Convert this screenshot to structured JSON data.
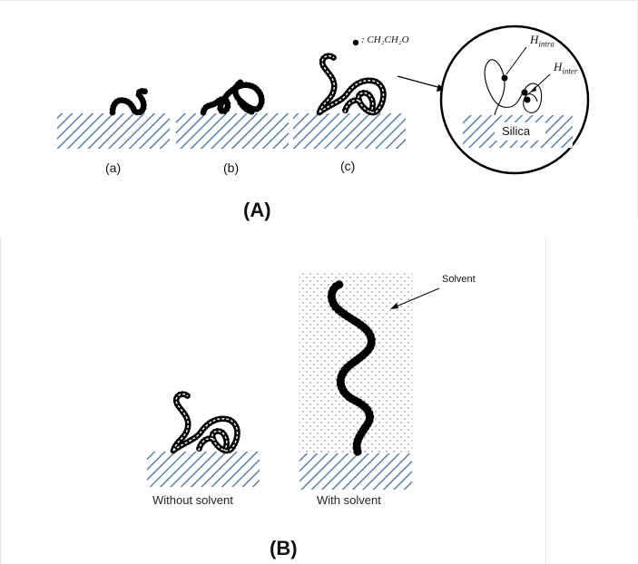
{
  "panels": {
    "A": "(A)",
    "B": "(B)"
  },
  "sub_labels": {
    "a": "(a)",
    "b": "(b)",
    "c": "(c)"
  },
  "legend": {
    "text": ": CH₂CH₂O"
  },
  "inset": {
    "h_intra": "H",
    "h_intra_sub": "intra",
    "h_inter": "H",
    "h_inter_sub": "inter",
    "silica": "Silica"
  },
  "solvent": {
    "label": "Solvent"
  },
  "captions": {
    "without": "Without solvent",
    "with": "With solvent"
  },
  "colors": {
    "hatch": "#5b7fa3",
    "bead": "#000000",
    "background": "#ffffff"
  }
}
